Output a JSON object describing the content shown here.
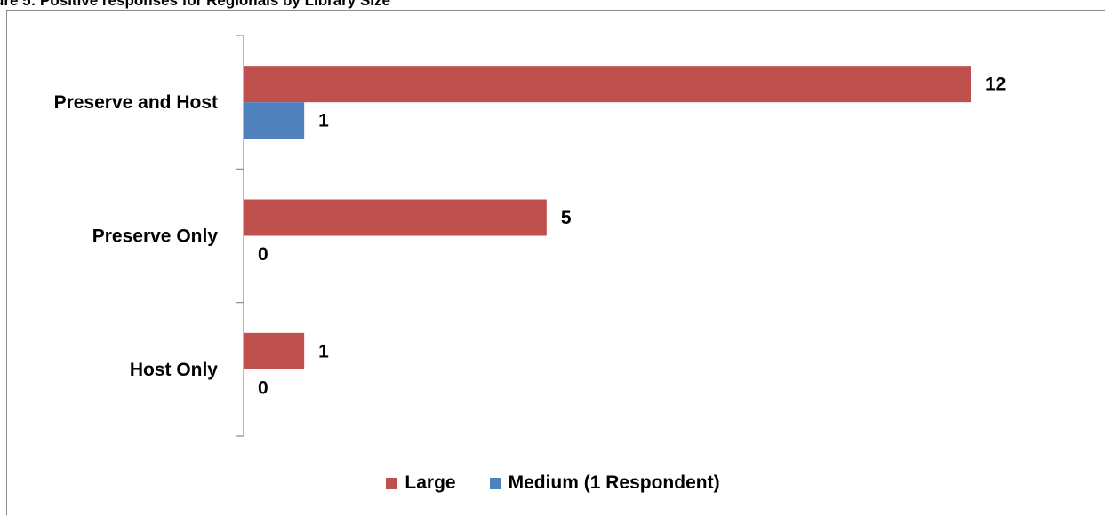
{
  "figure_title": "ure 5: Positive responses for Regionals by Library Size",
  "colors": {
    "large": "#c0504d",
    "medium": "#4f81bd",
    "axis": "#8c8c8c"
  },
  "chart_data": {
    "type": "bar",
    "orientation": "horizontal",
    "categories": [
      "Preserve and Host",
      "Preserve Only",
      "Host Only"
    ],
    "series": [
      {
        "name": "Large",
        "values": [
          12,
          5,
          1
        ]
      },
      {
        "name": "Medium (1 Respondent)",
        "values": [
          1,
          0,
          0
        ]
      }
    ],
    "xlim": [
      0,
      12
    ],
    "grid": false,
    "legend_position": "bottom"
  }
}
